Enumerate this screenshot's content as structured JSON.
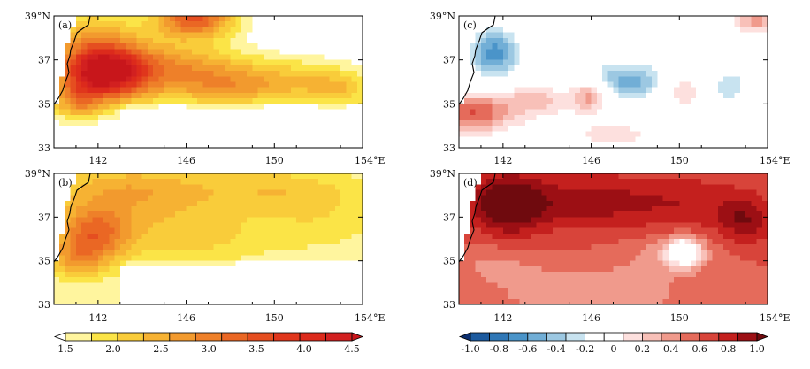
{
  "chart_data": [
    {
      "type": "heatmap",
      "panel": "(a)",
      "title": "(a)",
      "x_ticks": [
        "142",
        "146",
        "150",
        "154°E"
      ],
      "y_ticks": [
        "39°N",
        "37",
        "35",
        "33"
      ],
      "xlim": [
        140,
        154
      ],
      "ylim": [
        33,
        39
      ],
      "colormap": "yellow-red",
      "blobs": [
        {
          "lon": 142.2,
          "lat": 36.4,
          "sx": 1.4,
          "sy": 0.9,
          "val": 3.1
        },
        {
          "lon": 145.5,
          "lat": 36.6,
          "sx": 2.2,
          "sy": 1.0,
          "val": 1.3
        },
        {
          "lon": 146.4,
          "lat": 38.9,
          "sx": 1.3,
          "sy": 0.6,
          "val": 2.0
        },
        {
          "lon": 148.5,
          "lat": 35.8,
          "sx": 2.0,
          "sy": 0.7,
          "val": 1.0
        },
        {
          "lon": 150.8,
          "lat": 36.3,
          "sx": 1.6,
          "sy": 0.8,
          "val": 0.4
        },
        {
          "lon": 153.0,
          "lat": 35.7,
          "sx": 1.3,
          "sy": 0.7,
          "val": 0.9
        },
        {
          "lon": 141.6,
          "lat": 38.2,
          "sx": 1.6,
          "sy": 1.0,
          "val": 0.9
        },
        {
          "lon": 141.0,
          "lat": 35.0,
          "sx": 0.8,
          "sy": 0.6,
          "val": 1.0
        }
      ],
      "background": 1.2
    },
    {
      "type": "heatmap",
      "panel": "(b)",
      "title": "(b)",
      "x_ticks": [
        "142",
        "146",
        "150",
        "154°E"
      ],
      "y_ticks": [
        "39°N",
        "37",
        "35",
        "33"
      ],
      "xlim": [
        140,
        154
      ],
      "ylim": [
        33,
        39
      ],
      "colormap": "yellow-red",
      "blobs": [
        {
          "lon": 141.8,
          "lat": 36.2,
          "sx": 1.2,
          "sy": 0.9,
          "val": 1.5
        },
        {
          "lon": 143.5,
          "lat": 38.2,
          "sx": 2.6,
          "sy": 0.9,
          "val": 0.9
        },
        {
          "lon": 146.2,
          "lat": 36.2,
          "sx": 2.3,
          "sy": 0.9,
          "val": 0.6
        },
        {
          "lon": 149.5,
          "lat": 38.3,
          "sx": 2.4,
          "sy": 0.7,
          "val": 0.5
        },
        {
          "lon": 152.0,
          "lat": 37.2,
          "sx": 2.0,
          "sy": 1.2,
          "val": 0.4
        },
        {
          "lon": 141.0,
          "lat": 35.0,
          "sx": 0.9,
          "sy": 0.6,
          "val": 0.7
        }
      ],
      "background": 1.55
    },
    {
      "type": "heatmap",
      "panel": "(c)",
      "title": "(c)",
      "x_ticks": [
        "142",
        "146",
        "150",
        "154°E"
      ],
      "y_ticks": [
        "39°N",
        "37",
        "35",
        "33"
      ],
      "xlim": [
        140,
        154
      ],
      "ylim": [
        33,
        39
      ],
      "colormap": "blue-red",
      "blobs": [
        {
          "lon": 141.6,
          "lat": 37.3,
          "sx": 0.9,
          "sy": 0.9,
          "val": -0.65
        },
        {
          "lon": 147.6,
          "lat": 36.0,
          "sx": 1.5,
          "sy": 0.75,
          "val": -0.55
        },
        {
          "lon": 152.3,
          "lat": 35.8,
          "sx": 0.6,
          "sy": 0.6,
          "val": -0.4
        },
        {
          "lon": 144.5,
          "lat": 38.5,
          "sx": 0.9,
          "sy": 0.4,
          "val": -0.25
        },
        {
          "lon": 149.5,
          "lat": 38.5,
          "sx": 1.2,
          "sy": 0.4,
          "val": -0.2
        },
        {
          "lon": 140.6,
          "lat": 34.6,
          "sx": 1.3,
          "sy": 0.6,
          "val": 0.5
        },
        {
          "lon": 143.5,
          "lat": 35.2,
          "sx": 1.2,
          "sy": 0.5,
          "val": 0.25
        },
        {
          "lon": 146.0,
          "lat": 35.4,
          "sx": 0.6,
          "sy": 0.5,
          "val": 0.5
        },
        {
          "lon": 150.0,
          "lat": 35.6,
          "sx": 0.6,
          "sy": 0.5,
          "val": 0.3
        },
        {
          "lon": 153.5,
          "lat": 38.8,
          "sx": 0.7,
          "sy": 0.4,
          "val": 0.35
        },
        {
          "lon": 147.0,
          "lat": 33.6,
          "sx": 1.4,
          "sy": 0.5,
          "val": 0.15
        }
      ],
      "background": 0.0
    },
    {
      "type": "heatmap",
      "panel": "(d)",
      "title": "(d)",
      "x_ticks": [
        "142",
        "146",
        "150",
        "154°E"
      ],
      "y_ticks": [
        "39°N",
        "37",
        "35",
        "33"
      ],
      "xlim": [
        140,
        154
      ],
      "ylim": [
        33,
        39
      ],
      "colormap": "blue-red",
      "blobs": [
        {
          "lon": 142.2,
          "lat": 37.6,
          "sx": 1.1,
          "sy": 0.9,
          "val": 0.45
        },
        {
          "lon": 145.8,
          "lat": 37.7,
          "sx": 2.6,
          "sy": 0.9,
          "val": 0.25
        },
        {
          "lon": 151.0,
          "lat": 37.6,
          "sx": 2.0,
          "sy": 0.9,
          "val": 0.15
        },
        {
          "lon": 153.0,
          "lat": 36.8,
          "sx": 0.8,
          "sy": 0.7,
          "val": 0.25
        },
        {
          "lon": 150.2,
          "lat": 35.4,
          "sx": 0.55,
          "sy": 0.45,
          "val": -0.6
        },
        {
          "lon": 149.6,
          "lat": 35.3,
          "sx": 1.4,
          "sy": 0.6,
          "val": -0.15
        },
        {
          "lon": 146.0,
          "lat": 33.5,
          "sx": 3.0,
          "sy": 0.9,
          "val": -0.2
        },
        {
          "lon": 141.5,
          "lat": 34.8,
          "sx": 1.5,
          "sy": 0.6,
          "val": -0.1
        }
      ],
      "background": 0.5
    }
  ],
  "colorbars": {
    "yellow_red": {
      "labels": [
        "1.5",
        "2.0",
        "2.5",
        "3.0",
        "3.5",
        "4.0",
        "4.5"
      ],
      "colors": [
        "#ffffff",
        "#fff59e",
        "#fbe447",
        "#f9cc3a",
        "#f6b233",
        "#f29a2e",
        "#ee8029",
        "#ea6724",
        "#e54e20",
        "#e0361c",
        "#dc2a1c",
        "#d22020",
        "#c8161b"
      ]
    },
    "blue_red": {
      "labels": [
        "-1.0",
        "-0.8",
        "-0.6",
        "-0.4",
        "-0.2",
        "0",
        "0.2",
        "0.4",
        "0.6",
        "0.8",
        "1.0"
      ],
      "colors": [
        "#0b2e6f",
        "#1c5a9e",
        "#2f77b6",
        "#4a94c9",
        "#71aed6",
        "#9cc8e2",
        "#c8e3f0",
        "#ffffff",
        "#ffffff",
        "#fde0de",
        "#f8c0b8",
        "#f09a8c",
        "#e56b5b",
        "#d8443a",
        "#c4201e",
        "#9c0f14",
        "#6f0a0e"
      ]
    }
  }
}
